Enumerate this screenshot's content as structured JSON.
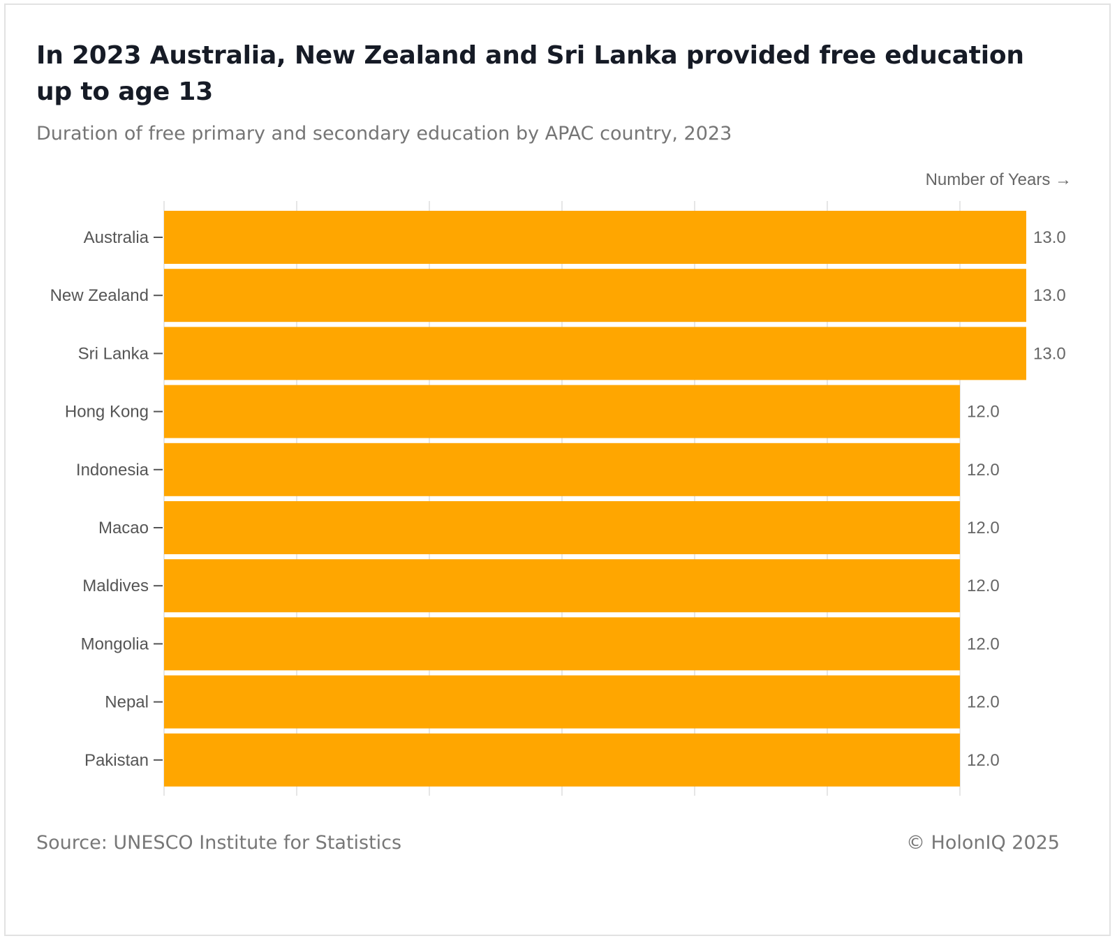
{
  "title": "In 2023 Australia, New Zealand and Sri Lanka provided free education up to age 13",
  "subtitle": "Duration of free primary and secondary education by APAC country, 2023",
  "source": "Source: UNESCO Institute for Statistics",
  "copyright": "© HolonIQ 2025",
  "colors": {
    "bar": "#FFA600",
    "grid": "#e6e6e6",
    "tick": "#555555"
  },
  "chart_data": {
    "type": "bar",
    "orientation": "horizontal",
    "title": "In 2023 Australia, New Zealand and Sri Lanka provided free education up to age 13",
    "subtitle": "Duration of free primary and secondary education by APAC country, 2023",
    "xlabel": "Number of Years →",
    "ylabel": "",
    "xlim": [
      0,
      14
    ],
    "grid": true,
    "legend": "none",
    "categories": [
      "Australia",
      "New Zealand",
      "Sri Lanka",
      "Hong Kong",
      "Indonesia",
      "Macao",
      "Maldives",
      "Mongolia",
      "Nepal",
      "Pakistan"
    ],
    "values": [
      13.0,
      13.0,
      13.0,
      12.0,
      12.0,
      12.0,
      12.0,
      12.0,
      12.0,
      12.0
    ],
    "value_labels": [
      "13.0",
      "13.0",
      "13.0",
      "12.0",
      "12.0",
      "12.0",
      "12.0",
      "12.0",
      "12.0",
      "12.0"
    ]
  }
}
